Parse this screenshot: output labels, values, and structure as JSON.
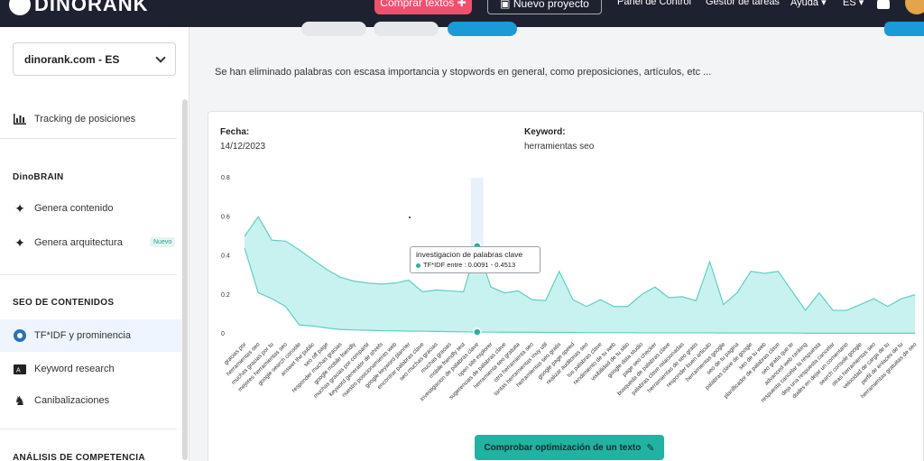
{
  "header": {
    "logo": "DINORANK",
    "buy_texts": "Comprar textos",
    "new_project": "Nuevo proyecto",
    "control_panel": "Panel de Control",
    "task_manager": "Gestor de tareas",
    "help": "Ayuda",
    "language": "ES"
  },
  "sidebar": {
    "site": "dinorank.com - ES",
    "items": [
      {
        "label": "Tracking de posiciones",
        "icon": "bar-chart-icon"
      },
      {
        "section": "DinoBRAIN"
      },
      {
        "label": "Genera contenido",
        "icon": "sparkle-icon"
      },
      {
        "label": "Genera arquitectura",
        "icon": "sparkle-icon",
        "badge": "Nuevo"
      },
      {
        "section": "SEO DE CONTENIDOS"
      },
      {
        "label": "TF*IDF y prominencia",
        "icon": "tfidf-icon",
        "active": true
      },
      {
        "label": "Keyword research",
        "icon": "keyword-icon"
      },
      {
        "label": "Canibalizaciones",
        "icon": "cannibal-icon"
      },
      {
        "section": "ANÁLISIS DE COMPETENCIA"
      }
    ]
  },
  "main": {
    "notice": "Se han eliminado palabras con escasa importancia y stopwords en general, como preposiciones, artículos, etc ...",
    "date_label": "Fecha:",
    "date_value": "14/12/2023",
    "keyword_label": "Keyword:",
    "keyword_value": "herramientas seo",
    "check_button": "Comprobar optimización de un texto"
  },
  "tooltip": {
    "title": "investigacion de palabras clave",
    "text": "TF*IDF entre : 0.0091 - 0.4513"
  },
  "colors": {
    "accent": "#21b3a2",
    "area_fill": "#c8f2ef",
    "line": "#5fcfc4",
    "header_bg": "#1e2230",
    "buy_button": "#f0506e"
  },
  "chart_data": {
    "type": "area",
    "title": "",
    "xlabel": "",
    "ylabel": "",
    "ylim": [
      0,
      0.8
    ],
    "yticks": [
      0,
      0.2,
      0.4,
      0.6,
      0.8
    ],
    "categories": [
      "gracias por",
      "herramientas seo",
      "muchas gracias por tu",
      "mejores herramientas seo",
      "google search console",
      "answer the public",
      "seo off page",
      "responder muchas gracias",
      "google mobile friendly",
      "muchas gracias por compartir",
      "keyword generator de ahrefs",
      "nuestro posicionamiento web",
      "google keyword planner",
      "encontrar palabras clave",
      "seo muchas gracias",
      "muchas gracias",
      "mobile friendly test",
      "investigacion de palabras clave",
      "open site explorer",
      "sugerencias de palabras clave",
      "herramienta seo gratuita",
      "otra herramienta seo",
      "tantas herramientas muy util",
      "herramientas seo gratis",
      "google page speed",
      "realizar auditorias seo",
      "tus palabras clave",
      "rendimiento de tu web",
      "visibilidad de tu sitio",
      "google data studio",
      "page seo checker",
      "busqueda de palabras clave",
      "palabras clave relacionadas",
      "herramientas de seo gratis",
      "responder buen articulo",
      "herramientas google",
      "seo de tu pagina",
      "palabras clave de google",
      "seo de tu web",
      "planificador de palabras clave",
      "seo gratis que te",
      "advanced web ranking",
      "respuesta cancelar la respuesta",
      "deja una respuesta cancelar",
      "dudes en dejar un comentario",
      "search console google",
      "otras herramientas seo",
      "velocidad de carga de tu",
      "perfil de enlaces de tu",
      "herramientas gratuitas de seo"
    ],
    "series": [
      {
        "values": [
          0.5,
          0.6,
          0.48,
          0.475,
          0.43,
          0.38,
          0.33,
          0.29,
          0.27,
          0.26,
          0.255,
          0.26,
          0.275,
          0.215,
          0.225,
          0.22,
          0.215,
          0.45,
          0.24,
          0.21,
          0.22,
          0.175,
          0.17,
          0.32,
          0.175,
          0.14,
          0.175,
          0.14,
          0.14,
          0.2,
          0.24,
          0.185,
          0.19,
          0.17,
          0.37,
          0.15,
          0.21,
          0.32,
          0.31,
          0.32,
          0.22,
          0.12,
          0.21,
          0.12,
          0.12,
          0.15,
          0.18,
          0.14,
          0.18,
          0.2
        ]
      },
      {
        "values": [
          0.44,
          0.21,
          0.18,
          0.14,
          0.045,
          0.04,
          0.03,
          0.022,
          0.02,
          0.018,
          0.016,
          0.015,
          0.014,
          0.013,
          0.012,
          0.011,
          0.01,
          0.009,
          0.009,
          0.008,
          0.008,
          0.008,
          0.007,
          0.007,
          0.007,
          0.006,
          0.006,
          0.006,
          0.006,
          0.005,
          0.005,
          0.005,
          0.005,
          0.005,
          0.005,
          0.004,
          0.004,
          0.004,
          0.004,
          0.004,
          0.004,
          0.003,
          0.003,
          0.003,
          0.003,
          0.003,
          0.003,
          0.003,
          0.003,
          0.003
        ]
      }
    ],
    "highlight_index": 17
  }
}
